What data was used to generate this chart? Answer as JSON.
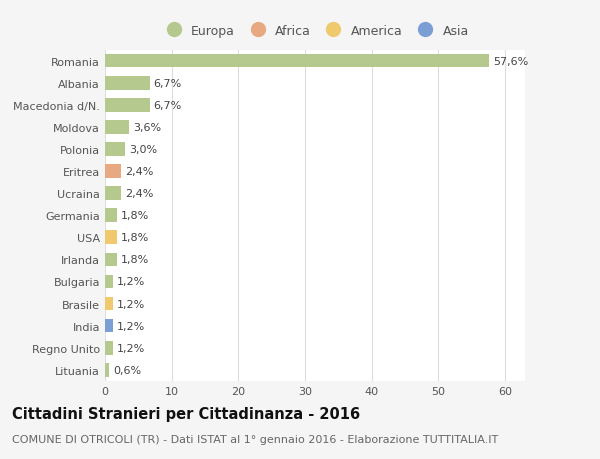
{
  "countries": [
    "Romania",
    "Albania",
    "Macedonia d/N.",
    "Moldova",
    "Polonia",
    "Eritrea",
    "Ucraina",
    "Germania",
    "USA",
    "Irlanda",
    "Bulgaria",
    "Brasile",
    "India",
    "Regno Unito",
    "Lituania"
  ],
  "values": [
    57.6,
    6.7,
    6.7,
    3.6,
    3.0,
    2.4,
    2.4,
    1.8,
    1.8,
    1.8,
    1.2,
    1.2,
    1.2,
    1.2,
    0.6
  ],
  "labels": [
    "57,6%",
    "6,7%",
    "6,7%",
    "3,6%",
    "3,0%",
    "2,4%",
    "2,4%",
    "1,8%",
    "1,8%",
    "1,8%",
    "1,2%",
    "1,2%",
    "1,2%",
    "1,2%",
    "0,6%"
  ],
  "categories": [
    "Europa",
    "Africa",
    "America",
    "Asia"
  ],
  "bar_colors": [
    "#b5c98e",
    "#b5c98e",
    "#b5c98e",
    "#b5c98e",
    "#b5c98e",
    "#e8a882",
    "#b5c98e",
    "#b5c98e",
    "#f0c96e",
    "#b5c98e",
    "#b5c98e",
    "#f0c96e",
    "#7b9fd4",
    "#b5c98e",
    "#b5c98e"
  ],
  "legend_colors": [
    "#b5c98e",
    "#e8a882",
    "#f0c96e",
    "#7b9fd4"
  ],
  "background_color": "#f5f5f5",
  "plot_bg_color": "#ffffff",
  "title": "Cittadini Stranieri per Cittadinanza - 2016",
  "subtitle": "COMUNE DI OTRICOLI (TR) - Dati ISTAT al 1° gennaio 2016 - Elaborazione TUTTITALIA.IT",
  "xlim": [
    0,
    63
  ],
  "xticks": [
    0,
    10,
    20,
    30,
    40,
    50,
    60
  ],
  "grid_color": "#dddddd",
  "bar_label_fontsize": 8,
  "ytick_fontsize": 8,
  "xtick_fontsize": 8,
  "legend_fontsize": 9,
  "title_fontsize": 10.5,
  "subtitle_fontsize": 8
}
